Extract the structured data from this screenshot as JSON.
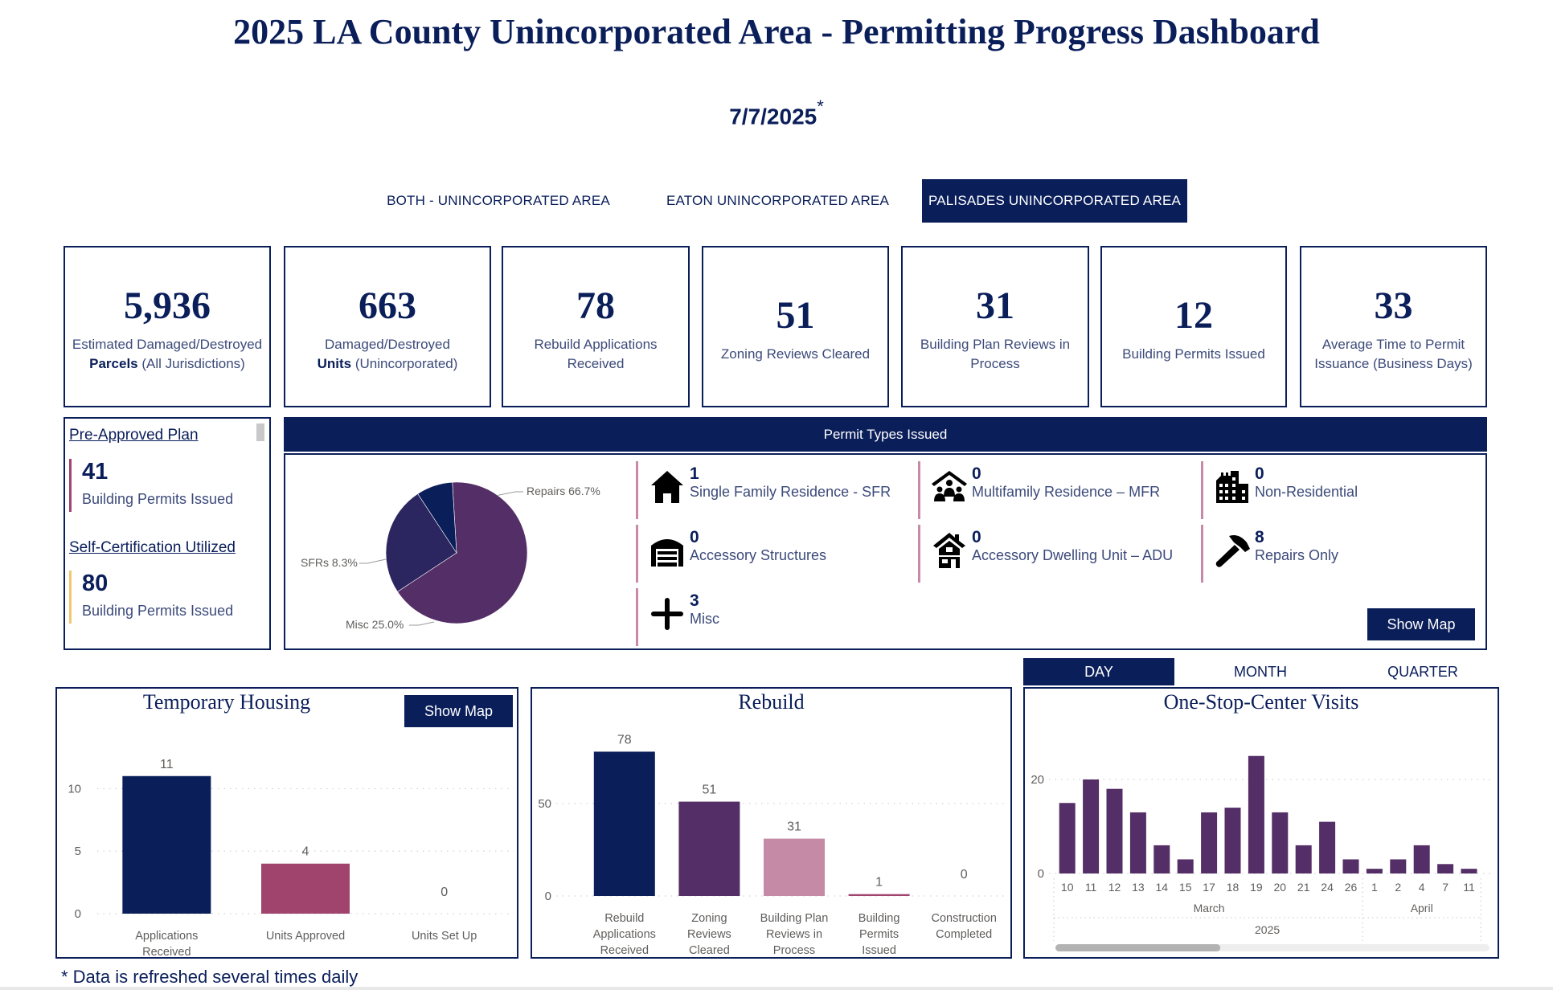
{
  "header": {
    "title": "2025 LA County Unincorporated Area - Permitting Progress Dashboard",
    "date": "7/7/2025",
    "date_marker": "*"
  },
  "area_tabs": [
    {
      "label": "BOTH - UNINCORPORATED AREA",
      "active": false
    },
    {
      "label": "EATON UNINCORPORATED AREA",
      "active": false
    },
    {
      "label": "PALISADES UNINCORPORATED AREA",
      "active": true
    }
  ],
  "kpis": [
    {
      "value": "5,936",
      "label_line1": "Estimated Damaged/Destroyed",
      "label_bold": "Parcels",
      "label_rest": " (All Jurisdictions)"
    },
    {
      "value": "663",
      "label_line1": "Damaged/Destroyed",
      "label_bold": "Units",
      "label_rest": " (Unincorporated)"
    },
    {
      "value": "78",
      "label": "Rebuild Applications Received"
    },
    {
      "value": "51",
      "label": "Zoning Reviews Cleared"
    },
    {
      "value": "31",
      "label": "Building Plan Reviews in Process"
    },
    {
      "value": "12",
      "label": "Building Permits Issued"
    },
    {
      "value": "33",
      "label": "Average Time to Permit Issuance (Business Days)"
    }
  ],
  "plan_panel": {
    "pre_approved": {
      "link": "Pre-Approved Plan ",
      "value": "41",
      "label": "Building Permits Issued",
      "accent": "#a0446e"
    },
    "self_cert": {
      "link": "Self-Certification Utilized",
      "value": "80",
      "label": "Building Permits Issued",
      "accent": "#f0c870"
    }
  },
  "permit_types": {
    "header": "Permit Types Issued",
    "items": [
      {
        "icon": "house-icon",
        "value": "1",
        "label": "Single Family Residence - SFR"
      },
      {
        "icon": "multifamily-icon",
        "value": "0",
        "label": "Multifamily Residence – MFR"
      },
      {
        "icon": "building-icon",
        "value": "0",
        "label": "Non-Residential"
      },
      {
        "icon": "garage-icon",
        "value": "0",
        "label": "Accessory Structures"
      },
      {
        "icon": "adu-house-icon",
        "value": "0",
        "label": "Accessory Dwelling Unit – ADU"
      },
      {
        "icon": "hammer-icon",
        "value": "8",
        "label": "Repairs Only"
      },
      {
        "icon": "plus-icon",
        "value": "3",
        "label": "Misc"
      }
    ],
    "show_map_label": "Show Map"
  },
  "temp_housing": {
    "show_map_label": "Show Map"
  },
  "osc_tabs": [
    {
      "label": "DAY",
      "active": true
    },
    {
      "label": "MONTH",
      "active": false
    },
    {
      "label": "QUARTER",
      "active": false
    }
  ],
  "footnote": "* Data is refreshed several times daily",
  "chart_data": [
    {
      "id": "permit-types-pie",
      "type": "pie",
      "title": "Permit Types Issued",
      "slices": [
        {
          "label": "Repairs",
          "percent": 66.7,
          "display": "Repairs 66.7%",
          "color": "#542e66"
        },
        {
          "label": "Misc",
          "percent": 25.0,
          "display": "Misc 25.0%",
          "color": "#2b2560"
        },
        {
          "label": "SFRs",
          "percent": 8.3,
          "display": "SFRs 8.3%",
          "color": "#0a1e5a"
        }
      ]
    },
    {
      "id": "temporary-housing",
      "type": "bar",
      "title": "Temporary Housing",
      "categories": [
        [
          "Applications",
          "Received"
        ],
        [
          "Units Approved"
        ],
        [
          "Units Set Up"
        ]
      ],
      "values": [
        11,
        4,
        0
      ],
      "colors": [
        "#0a1e5a",
        "#a0446e",
        "#a0446e"
      ],
      "yticks": [
        0,
        5,
        10
      ],
      "ylim": [
        0,
        11.5
      ],
      "grid": true,
      "xlabel": "",
      "ylabel": ""
    },
    {
      "id": "rebuild",
      "type": "bar",
      "title": "Rebuild",
      "categories": [
        [
          "Rebuild",
          "Applications",
          "Received"
        ],
        [
          "Zoning",
          "Reviews",
          "Cleared"
        ],
        [
          "Building Plan",
          "Reviews in",
          "Process"
        ],
        [
          "Building",
          "Permits",
          "Issued"
        ],
        [
          "Construction",
          "Completed"
        ]
      ],
      "values": [
        78,
        51,
        31,
        1,
        0
      ],
      "colors": [
        "#0a1e5a",
        "#542e66",
        "#c48aa6",
        "#a0446e",
        "#a0446e"
      ],
      "yticks": [
        0,
        50
      ],
      "ylim": [
        0,
        86
      ],
      "grid": true,
      "xlabel": "",
      "ylabel": ""
    },
    {
      "id": "one-stop-center-visits",
      "type": "bar",
      "title": "One-Stop-Center Visits",
      "categories": [
        "10",
        "11",
        "12",
        "13",
        "14",
        "15",
        "17",
        "18",
        "19",
        "20",
        "21",
        "24",
        "26",
        "1",
        "2",
        "4",
        "7",
        "11"
      ],
      "months": [
        {
          "label": "March",
          "count": 13
        },
        {
          "label": "April",
          "count": 5
        }
      ],
      "year": "2025",
      "values": [
        15,
        20,
        18,
        13,
        6,
        3,
        13,
        14,
        25,
        13,
        6,
        11,
        3,
        1,
        3,
        6,
        2,
        1
      ],
      "color": "#542e66",
      "yticks": [
        0,
        20
      ],
      "ylim": [
        0,
        27
      ],
      "grid": true,
      "scroll_fraction": 0.38
    }
  ]
}
